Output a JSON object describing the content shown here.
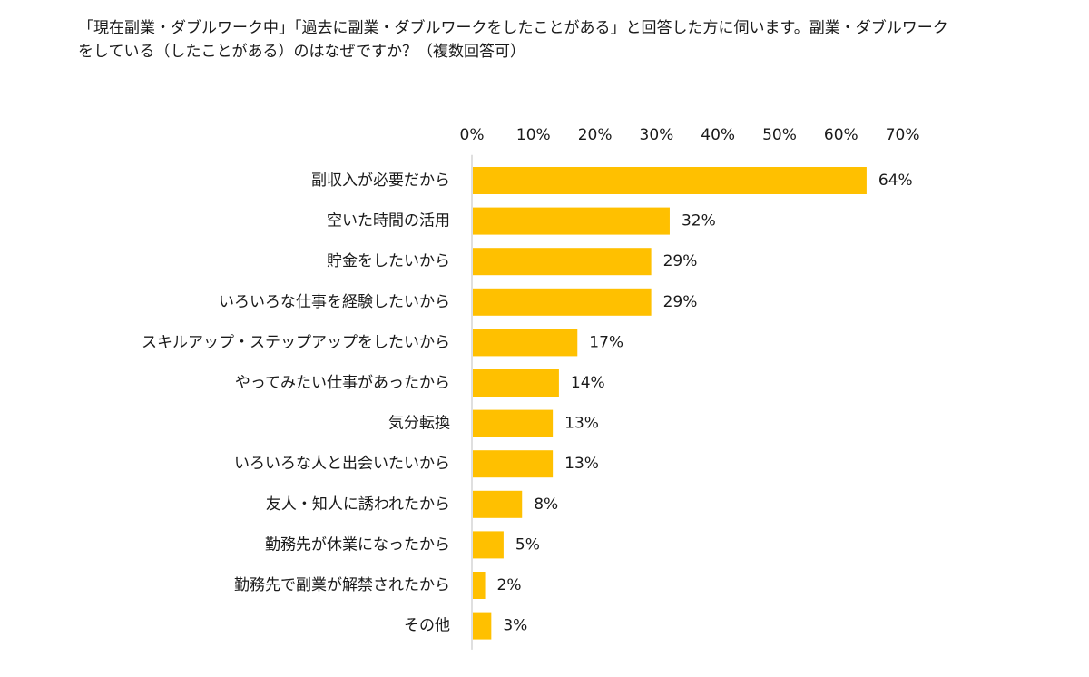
{
  "question": {
    "line1": "「現在副業・ダブルワーク中」「過去に副業・ダブルワークをしたことがある」と回答した方に伺います。副業・ダブルワーク",
    "line2": "をしている（したことがある）のはなぜですか？（複数回答可）"
  },
  "chart_data": {
    "type": "bar",
    "orientation": "horizontal",
    "title": "",
    "xlabel": "",
    "ylabel": "",
    "xlim": [
      0,
      70
    ],
    "x_ticks": [
      "0%",
      "10%",
      "20%",
      "30%",
      "40%",
      "50%",
      "60%",
      "70%"
    ],
    "tick_values": [
      0,
      10,
      20,
      30,
      40,
      50,
      60,
      70
    ],
    "axis_position": "top",
    "grid": false,
    "bar_color": "#FFC000",
    "categories": [
      "副収入が必要だから",
      "空いた時間の活用",
      "貯金をしたいから",
      "いろいろな仕事を経験したいから",
      "スキルアップ・ステップアップをしたいから",
      "やってみたい仕事があったから",
      "気分転換",
      "いろいろな人と出会いたいから",
      "友人・知人に誘われたから",
      "勤務先が休業になったから",
      "勤務先で副業が解禁されたから",
      "その他"
    ],
    "values": [
      64,
      32,
      29,
      29,
      17,
      14,
      13,
      13,
      8,
      5,
      2,
      3
    ],
    "value_labels": [
      "64%",
      "32%",
      "29%",
      "29%",
      "17%",
      "14%",
      "13%",
      "13%",
      "8%",
      "5%",
      "2%",
      "3%"
    ]
  }
}
